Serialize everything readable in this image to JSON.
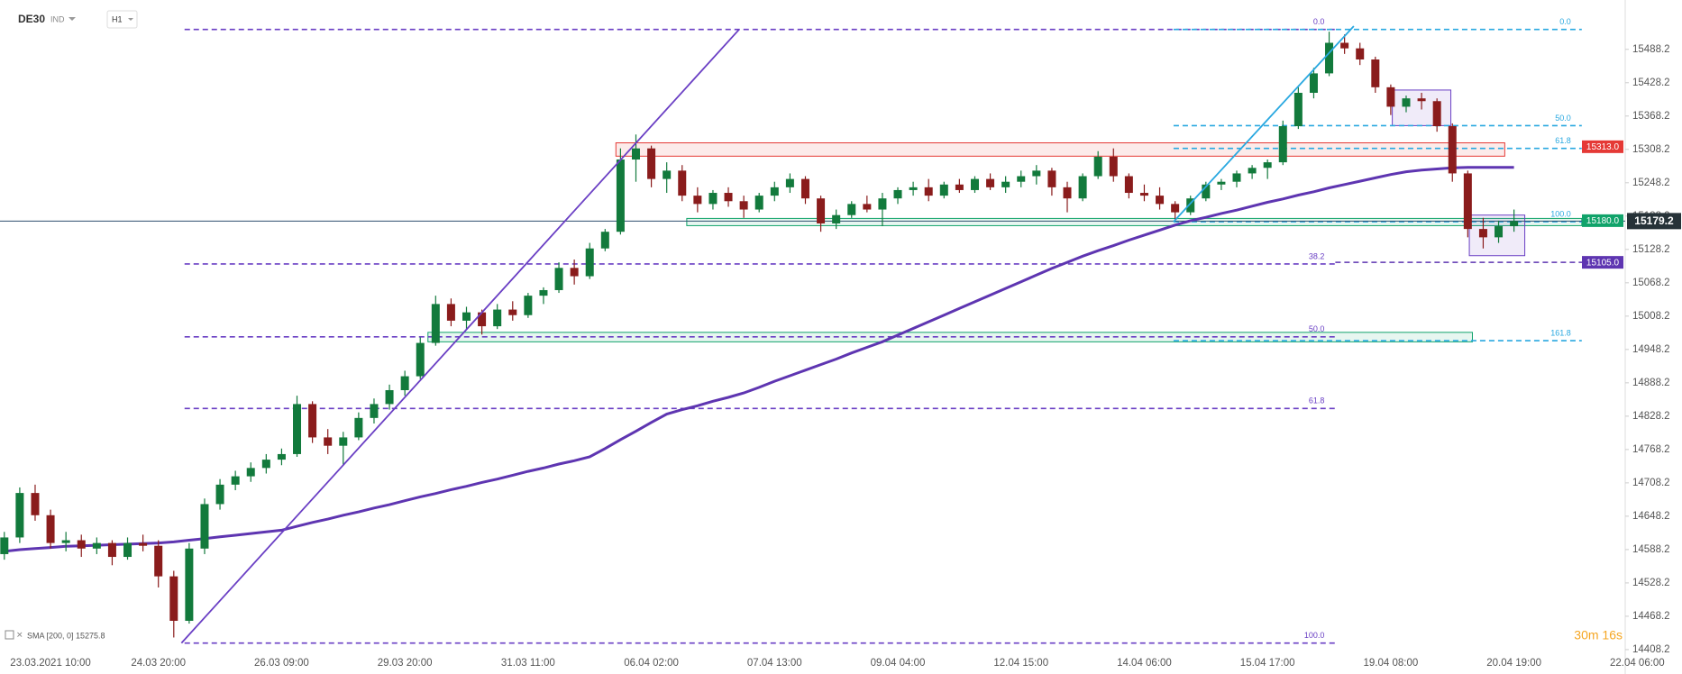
{
  "chart_data": {
    "type": "candlestick",
    "symbol": "DE30",
    "market": "IND",
    "interval": "H1",
    "indicator_label": "SMA [200, 0] 15275.8",
    "countdown": "30m 16s",
    "up_color": "#127a3c",
    "down_color": "#8a1c1c",
    "categories": [
      null,
      null,
      null,
      "23.03.2021 10:00",
      null,
      null,
      null,
      null,
      null,
      null,
      "24.03 20:00",
      null,
      null,
      null,
      null,
      null,
      null,
      null,
      "26.03 09:00",
      null,
      null,
      null,
      null,
      null,
      null,
      null,
      "29.03 20:00",
      null,
      null,
      null,
      null,
      null,
      null,
      null,
      "31.03 11:00",
      null,
      null,
      null,
      null,
      null,
      null,
      null,
      "06.04 02:00",
      null,
      null,
      null,
      null,
      null,
      null,
      null,
      "07.04 13:00",
      null,
      null,
      null,
      null,
      null,
      null,
      null,
      "09.04 04:00",
      null,
      null,
      null,
      null,
      null,
      null,
      null,
      "12.04 15:00",
      null,
      null,
      null,
      null,
      null,
      null,
      null,
      "14.04 06:00",
      null,
      null,
      null,
      null,
      null,
      null,
      null,
      "15.04 17:00",
      null,
      null,
      null,
      null,
      null,
      null,
      null,
      "19.04 08:00",
      null,
      null,
      null,
      null,
      null,
      null,
      null,
      "20.04 19:00",
      null,
      null,
      null,
      null,
      null,
      null,
      null,
      "22.04 06:00"
    ],
    "open": [
      14580,
      14610,
      14690,
      14650,
      14600,
      14605,
      14590,
      14600,
      14575,
      14600,
      14595,
      14540,
      14460,
      14590,
      14670,
      14705,
      14720,
      14735,
      14750,
      14760,
      14850,
      14790,
      14775,
      14790,
      14825,
      14850,
      14875,
      14900,
      14960,
      15030,
      15000,
      15015,
      14990,
      15020,
      15010,
      15045,
      15055,
      15095,
      15080,
      15130,
      15160,
      15290,
      15310,
      15255,
      15270,
      15225,
      15210,
      15230,
      15215,
      15200,
      15225,
      15240,
      15255,
      15220,
      15175,
      15190,
      15210,
      15200,
      15220,
      15235,
      15240,
      15225,
      15245,
      15235,
      15255,
      15240,
      15250,
      15260,
      15270,
      15240,
      15220,
      15260,
      15295,
      15260,
      15230,
      15225,
      15210,
      15195,
      15220,
      15245,
      15250,
      15265,
      15275,
      15285,
      15350,
      15410,
      15445,
      15500,
      15490,
      15470,
      15420,
      15385,
      15400,
      15395,
      15350,
      15265,
      15165,
      15150,
      15170,
      null,
      null,
      null,
      null,
      null,
      null,
      null,
      null
    ],
    "high": [
      14620,
      14700,
      14705,
      14660,
      14620,
      14615,
      14610,
      14605,
      14610,
      14615,
      14605,
      14550,
      14600,
      14680,
      14715,
      14730,
      14745,
      14760,
      14770,
      14865,
      14855,
      14805,
      14800,
      14835,
      14860,
      14885,
      14910,
      14970,
      15045,
      15040,
      15025,
      15020,
      15030,
      15035,
      15050,
      15060,
      15105,
      15110,
      15140,
      15165,
      15310,
      15335,
      15315,
      15285,
      15280,
      15240,
      15235,
      15240,
      15225,
      15230,
      15250,
      15265,
      15260,
      15225,
      15200,
      15215,
      15225,
      15230,
      15240,
      15250,
      15255,
      15250,
      15255,
      15260,
      15265,
      15260,
      15270,
      15280,
      15275,
      15250,
      15265,
      15305,
      15310,
      15265,
      15245,
      15240,
      15215,
      15225,
      15250,
      15255,
      15270,
      15280,
      15290,
      15360,
      15420,
      15455,
      15520,
      15515,
      15500,
      15475,
      15425,
      15405,
      15410,
      15400,
      15355,
      15270,
      15185,
      15180,
      15200,
      null,
      null,
      null,
      null,
      null,
      null,
      null,
      null
    ],
    "low": [
      14570,
      14600,
      14640,
      14590,
      14585,
      14575,
      14580,
      14560,
      14570,
      14585,
      14520,
      14430,
      14455,
      14580,
      14660,
      14695,
      14710,
      14725,
      14740,
      14755,
      14780,
      14760,
      14740,
      14785,
      14815,
      14840,
      14865,
      14895,
      14955,
      14990,
      14985,
      14975,
      14985,
      15000,
      15005,
      15030,
      15050,
      15065,
      15075,
      15125,
      15155,
      15250,
      15240,
      15230,
      15215,
      15195,
      15200,
      15205,
      15185,
      15195,
      15215,
      15230,
      15210,
      15160,
      15165,
      15185,
      15195,
      15170,
      15210,
      15225,
      15215,
      15220,
      15230,
      15230,
      15235,
      15230,
      15240,
      15245,
      15225,
      15195,
      15215,
      15255,
      15250,
      15220,
      15215,
      15200,
      15180,
      15190,
      15215,
      15235,
      15240,
      15255,
      15255,
      15280,
      15345,
      15400,
      15440,
      15480,
      15460,
      15410,
      15370,
      15375,
      15380,
      15340,
      15250,
      15150,
      15130,
      15140,
      15160,
      null,
      null,
      null,
      null,
      null,
      null,
      null,
      null
    ],
    "close": [
      14610,
      14690,
      14650,
      14600,
      14605,
      14590,
      14600,
      14575,
      14600,
      14595,
      14540,
      14460,
      14590,
      14670,
      14705,
      14720,
      14735,
      14750,
      14760,
      14850,
      14790,
      14775,
      14790,
      14825,
      14850,
      14875,
      14900,
      14960,
      15030,
      15000,
      15015,
      14990,
      15020,
      15010,
      15045,
      15055,
      15095,
      15080,
      15130,
      15160,
      15290,
      15310,
      15255,
      15270,
      15225,
      15210,
      15230,
      15215,
      15200,
      15225,
      15240,
      15255,
      15220,
      15175,
      15190,
      15210,
      15200,
      15220,
      15235,
      15240,
      15225,
      15245,
      15235,
      15255,
      15240,
      15250,
      15260,
      15270,
      15240,
      15220,
      15260,
      15295,
      15260,
      15230,
      15225,
      15210,
      15195,
      15220,
      15245,
      15250,
      15265,
      15275,
      15285,
      15350,
      15410,
      15445,
      15500,
      15490,
      15470,
      15420,
      15385,
      15400,
      15395,
      15350,
      15265,
      15165,
      15150,
      15170,
      15179.2,
      null,
      null,
      null,
      null,
      null,
      null,
      null,
      null
    ],
    "sma": {
      "color": "#5e35b1",
      "values": [
        14585,
        14588,
        14590,
        14592,
        14594,
        14595,
        14596,
        14597,
        14598,
        14599,
        14600,
        14602,
        14605,
        14608,
        14611,
        14614,
        14617,
        14620,
        14623,
        14630,
        14637,
        14643,
        14650,
        14656,
        14663,
        14669,
        14676,
        14683,
        14689,
        14696,
        14702,
        14709,
        14715,
        14722,
        14729,
        14735,
        14742,
        14748,
        14755,
        14770,
        14786,
        14801,
        14817,
        14832,
        14840,
        14847,
        14855,
        14862,
        14870,
        14880,
        14891,
        14901,
        14911,
        14921,
        14931,
        14942,
        14952,
        14962,
        14974,
        14986,
        14998,
        15010,
        15022,
        15034,
        15046,
        15058,
        15070,
        15082,
        15094,
        15105,
        15116,
        15126,
        15135,
        15145,
        15154,
        15163,
        15172,
        15180,
        15186,
        15193,
        15199,
        15206,
        15213,
        15219,
        15226,
        15232,
        15239,
        15245,
        15251,
        15257,
        15263,
        15268,
        15271,
        15273,
        15275,
        15276,
        15276,
        15276,
        15275.8,
        null,
        null,
        null,
        null,
        null,
        null,
        null,
        null
      ]
    },
    "ylim": [
      14387,
      15577
    ],
    "yticks": [
      14408.2,
      14468.2,
      14528.2,
      14588.2,
      14648.2,
      14708.2,
      14768.2,
      14828.2,
      14888.2,
      14948.2,
      15008.2,
      15068.2,
      15128.2,
      15188.2,
      15248.2,
      15308.2,
      15368.2,
      15428.2,
      15488.2
    ],
    "zones": [
      {
        "color": "#e53935",
        "x": [
          39.7,
          97.4
        ],
        "price": [
          15320,
          15296
        ]
      },
      {
        "color": "#10a36a",
        "x": [
          44.3,
          102.4
        ],
        "price": [
          15184,
          15171
        ]
      },
      {
        "color": "#10a36a",
        "x": [
          27.5,
          95.3
        ],
        "price": [
          14979,
          14962
        ]
      },
      {
        "color": "#6a3fc4",
        "x": [
          90.1,
          93.9
        ],
        "price": [
          15415,
          15351
        ]
      },
      {
        "color": "#6a3fc4",
        "x": [
          95.1,
          98.7
        ],
        "price": [
          15190,
          15117
        ]
      }
    ],
    "trendlines": [
      {
        "color": "#6a3fc4",
        "x": [
          11.5,
          47.7
        ],
        "y": [
          14420,
          15524
        ]
      },
      {
        "color": "#29a8e0",
        "x": [
          75.9,
          87.6
        ],
        "y": [
          15178,
          15530
        ]
      }
    ],
    "fib": [
      {
        "color": "#6a3fc4",
        "x": [
          11.7,
          86.4
        ],
        "levels": [
          {
            "label": "0.0",
            "value": 15524
          },
          {
            "label": "38.2",
            "value": 15102
          },
          {
            "label": "50.0",
            "value": 14971
          },
          {
            "label": "61.8",
            "value": 14842
          },
          {
            "label": "100.0",
            "value": 14420
          }
        ]
      },
      {
        "color": "#29a8e0",
        "x": [
          75.9,
          102.4
        ],
        "levels": [
          {
            "label": "0.0",
            "value": 15524
          },
          {
            "label": "50.0",
            "value": 15351
          },
          {
            "label": "61.8",
            "value": 15310
          },
          {
            "label": "100.0",
            "value": 15178
          },
          {
            "label": "161.8",
            "value": 14964
          }
        ]
      }
    ],
    "levels": [
      {
        "value": 15313,
        "label": "15313.0",
        "color": "#e53935"
      },
      {
        "value": 15180,
        "label": "15180.0",
        "color": "#10a36a"
      },
      {
        "value": 15105,
        "label": "15105.0",
        "color": "#5e35b1",
        "x": 86.4
      }
    ],
    "current": {
      "value": 15179.2,
      "label": "15179.2",
      "color": "#263238"
    }
  }
}
